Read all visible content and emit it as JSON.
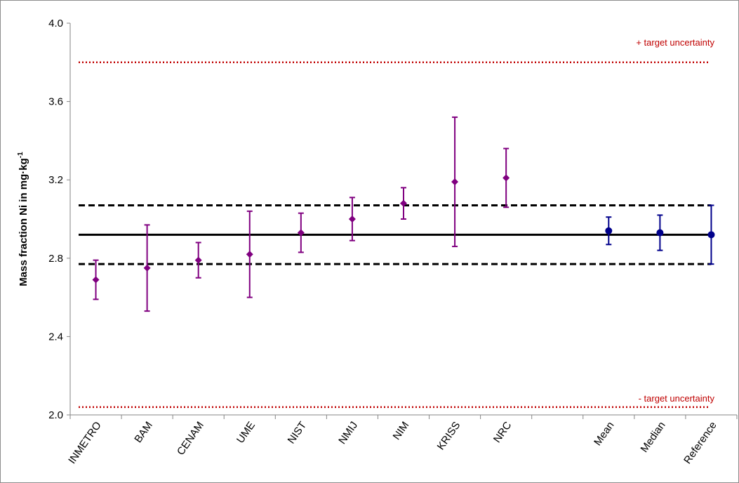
{
  "chart_data": {
    "type": "scatter",
    "ylabel": "Mass fraction Ni in mg·kg",
    "ylabel_sup": "-1",
    "ylim": [
      2.0,
      4.0
    ],
    "y_ticks": [
      "2.0",
      "2.4",
      "2.8",
      "3.2",
      "3.6",
      "4.0"
    ],
    "categories": [
      "INMETRO",
      "BAM",
      "CENAM",
      "UME",
      "NIST",
      "NMIJ",
      "NIM",
      "KRISS",
      "NRC",
      "",
      "Mean",
      "Median",
      "Reference"
    ],
    "series": [
      {
        "type": "participant",
        "color": "#800080",
        "marker": "diamond",
        "points": [
          {
            "category": "INMETRO",
            "value": 2.69,
            "low": 2.59,
            "high": 2.79
          },
          {
            "category": "BAM",
            "value": 2.75,
            "low": 2.53,
            "high": 2.97
          },
          {
            "category": "CENAM",
            "value": 2.79,
            "low": 2.7,
            "high": 2.88
          },
          {
            "category": "UME",
            "value": 2.82,
            "low": 2.6,
            "high": 3.04
          },
          {
            "category": "NIST",
            "value": 2.93,
            "low": 2.83,
            "high": 3.03
          },
          {
            "category": "NMIJ",
            "value": 3.0,
            "low": 2.89,
            "high": 3.11
          },
          {
            "category": "NIM",
            "value": 3.08,
            "low": 3.0,
            "high": 3.16
          },
          {
            "category": "KRISS",
            "value": 3.19,
            "low": 2.86,
            "high": 3.52
          },
          {
            "category": "NRC",
            "value": 3.21,
            "low": 3.06,
            "high": 3.36
          }
        ]
      },
      {
        "type": "estimator",
        "color": "#00008b",
        "marker": "circle",
        "points": [
          {
            "category": "Mean",
            "value": 2.94,
            "low": 2.87,
            "high": 3.01
          },
          {
            "category": "Median",
            "value": 2.93,
            "low": 2.84,
            "high": 3.02
          },
          {
            "category": "Reference",
            "value": 2.92,
            "low": 2.77,
            "high": 3.07
          }
        ]
      }
    ],
    "reference_line": 2.92,
    "reference_band": [
      2.77,
      3.07
    ],
    "target_uncertainty": {
      "upper": 3.8,
      "lower": 2.04,
      "upper_label": "+ target uncertainty",
      "lower_label": "- target uncertainty",
      "color": "#c00000"
    },
    "grid": false,
    "legend": "none"
  }
}
